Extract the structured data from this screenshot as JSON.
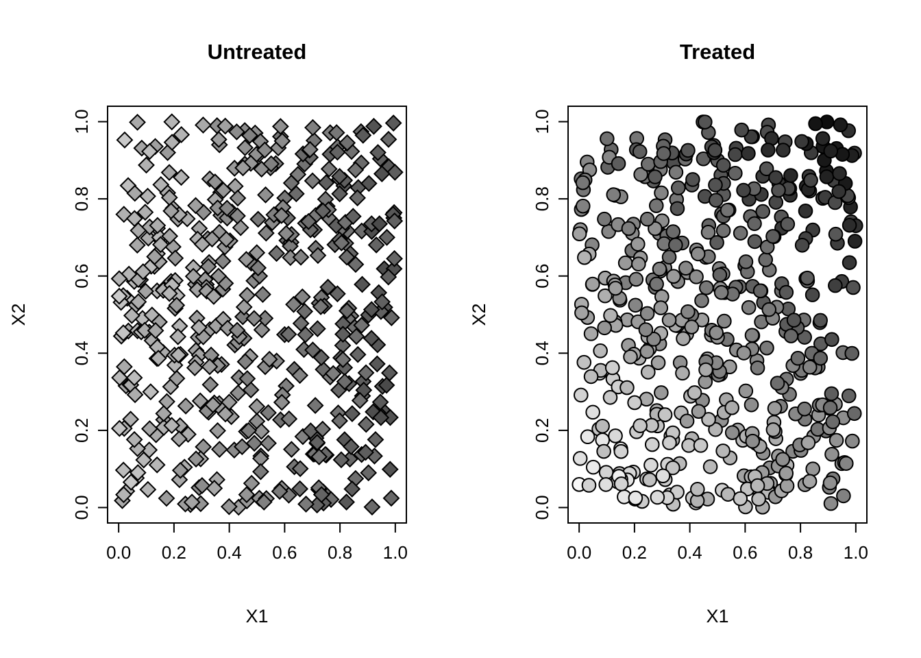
{
  "figure": {
    "background": "#ffffff",
    "foreground": "#000000"
  },
  "chart_data": {
    "type": "scatter",
    "layout": "1x2",
    "grid": false,
    "panels": [
      {
        "title": "Untreated",
        "xlabel": "X1",
        "ylabel": "X2",
        "xlim": [
          0,
          1
        ],
        "ylim": [
          0,
          1
        ],
        "xticks": [
          0,
          0.2,
          0.4,
          0.6,
          0.8,
          1
        ],
        "yticks": [
          0,
          0.2,
          0.4,
          0.6,
          0.8,
          1
        ],
        "xtick_labels": [
          "0.0",
          "0.2",
          "0.4",
          "0.6",
          "0.8",
          "1.0"
        ],
        "ytick_labels": [
          "0.0",
          "0.2",
          "0.4",
          "0.6",
          "0.8",
          "1.0"
        ],
        "marker": "diamond",
        "marker_outline": "#000000",
        "n_points": 500,
        "seed": 20231,
        "point_distribution": "uniform on [0,1] x [0,1]",
        "shade_rule": {
          "description": "grayscale fill darkens mainly with X1 plus random noise",
          "base": 0,
          "wx": 0.75,
          "wy": 0.0,
          "noise": 0.25,
          "gray_light": "#cdcdcd",
          "gray_dark": "#454545"
        }
      },
      {
        "title": "Treated",
        "xlabel": "X1",
        "ylabel": "X2",
        "xlim": [
          0,
          1
        ],
        "ylim": [
          0,
          1
        ],
        "xticks": [
          0,
          0.2,
          0.4,
          0.6,
          0.8,
          1
        ],
        "yticks": [
          0,
          0.2,
          0.4,
          0.6,
          0.8,
          1
        ],
        "xtick_labels": [
          "0.0",
          "0.2",
          "0.4",
          "0.6",
          "0.8",
          "1.0"
        ],
        "ytick_labels": [
          "0.0",
          "0.2",
          "0.4",
          "0.6",
          "0.8",
          "1.0"
        ],
        "marker": "circle",
        "marker_outline": "#000000",
        "n_points": 500,
        "seed": 77123,
        "point_distribution": "uniform on [0,1] x [0,1]",
        "shade_rule": {
          "description": "grayscale fill darkens with X1 and X2 (near-white bottom-left, near-black top-right) plus random noise",
          "base": -0.05,
          "wx": 0.38,
          "wy": 0.52,
          "noise": 0.2,
          "gray_light": "#fbfbfb",
          "gray_dark": "#0a0a0a"
        }
      }
    ]
  }
}
